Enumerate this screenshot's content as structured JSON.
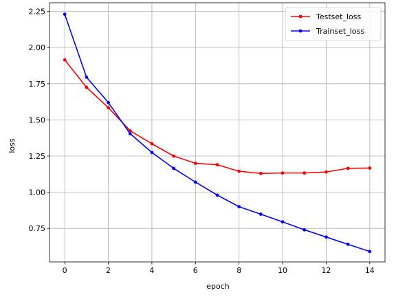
{
  "chart_data": {
    "type": "line",
    "xlabel": "epoch",
    "ylabel": "loss",
    "xlim": [
      -0.7,
      14.7
    ],
    "ylim": [
      0.518,
      2.31
    ],
    "xticks": [
      0,
      2,
      4,
      6,
      8,
      10,
      12,
      14
    ],
    "xtick_labels": [
      "0",
      "2",
      "4",
      "6",
      "8",
      "10",
      "12",
      "14"
    ],
    "yticks": [
      0.75,
      1.0,
      1.25,
      1.5,
      1.75,
      2.0,
      2.25
    ],
    "ytick_labels": [
      "0.75",
      "1.00",
      "1.25",
      "1.50",
      "1.75",
      "2.00",
      "2.25"
    ],
    "grid": true,
    "legend_position": "top-right",
    "x": [
      0,
      1,
      2,
      3,
      4,
      5,
      6,
      7,
      8,
      9,
      10,
      11,
      12,
      13,
      14
    ],
    "series": [
      {
        "name": "Testset_loss",
        "color": "#ff0000",
        "values": [
          1.915,
          1.725,
          1.585,
          1.425,
          1.335,
          1.25,
          1.2,
          1.19,
          1.145,
          1.13,
          1.133,
          1.133,
          1.14,
          1.165,
          1.167
        ]
      },
      {
        "name": "Trainset_loss",
        "color": "#0000ff",
        "values": [
          2.23,
          1.795,
          1.62,
          1.405,
          1.275,
          1.165,
          1.07,
          0.98,
          0.9,
          0.848,
          0.795,
          0.74,
          0.69,
          0.64,
          0.59
        ]
      }
    ]
  }
}
